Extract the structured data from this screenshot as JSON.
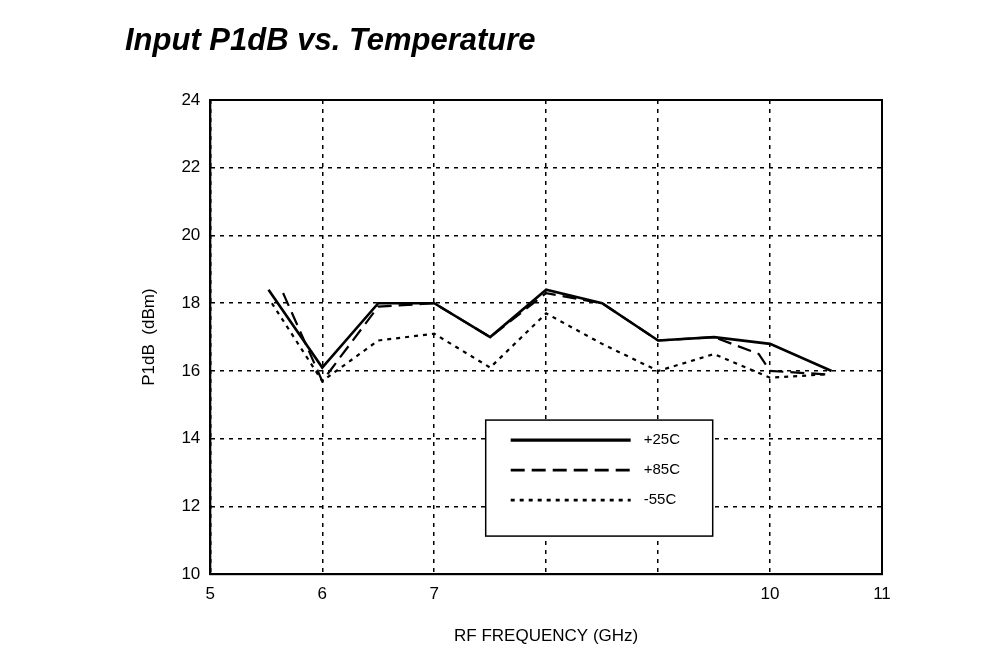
{
  "chart_data": {
    "type": "line",
    "title": "Input P1dB vs. Temperature",
    "x_label": "RF FREQUENCY (GHz)",
    "y_label": "P1dB  (dBm)",
    "xlim": [
      5,
      11
    ],
    "xticks": [
      5,
      6,
      7,
      {
        "value": 8,
        "label": null
      },
      {
        "value": 9,
        "label": null
      },
      10,
      11
    ],
    "ylim": [
      10,
      24
    ],
    "yticks": [
      10,
      12,
      14,
      16,
      18,
      20,
      22,
      24
    ],
    "grid": true,
    "legend": "lower right",
    "series": [
      {
        "name": "+25C",
        "color": "#000000",
        "line_style": "solid",
        "x": [
          5.52,
          6.0,
          6.5,
          7.0,
          7.5,
          8.0,
          8.5,
          9.0,
          9.5,
          10.0,
          10.55
        ],
        "values": [
          18.4,
          16.1,
          18.0,
          18.0,
          17.0,
          18.4,
          18.0,
          16.9,
          17.0,
          16.8,
          16.0
        ]
      },
      {
        "name": "+85C",
        "color": "#000000",
        "line_style": "dashed",
        "x": [
          5.65,
          6.0,
          6.5,
          7.0,
          7.5,
          8.0,
          8.5,
          9.0,
          9.5,
          9.9,
          10.0,
          10.5
        ],
        "values": [
          18.3,
          15.7,
          17.9,
          18.0,
          17.0,
          18.3,
          18.0,
          16.9,
          17.0,
          16.5,
          16.0,
          15.9
        ]
      },
      {
        "name": "-55C",
        "color": "#000000",
        "line_style": "dotted",
        "x": [
          5.55,
          6.0,
          6.5,
          7.0,
          7.5,
          8.0,
          8.5,
          9.0,
          9.5,
          10.0,
          10.5
        ],
        "values": [
          18.0,
          15.7,
          16.9,
          17.1,
          16.1,
          17.7,
          16.8,
          16.0,
          16.5,
          15.8,
          15.9
        ]
      }
    ]
  }
}
